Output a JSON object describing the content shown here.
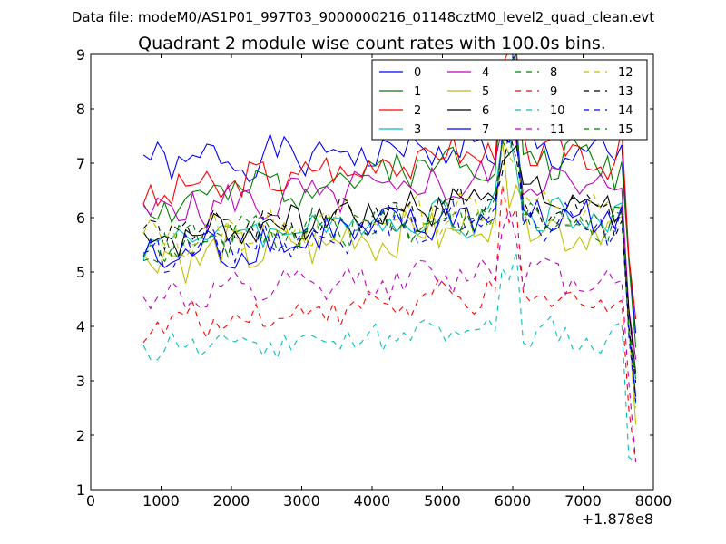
{
  "header": {
    "data_file": "Data file: modeM0/AS1P01_997T03_9000000216_01148cztM0_level2_quad_clean.evt"
  },
  "chart_data": {
    "type": "line",
    "title": "Quadrant 2 module wise count rates with 100.0s bins.",
    "xlabel": "",
    "ylabel": "",
    "xlim": [
      0,
      8000
    ],
    "ylim": [
      1,
      9
    ],
    "x_offset_label": "+1.878e8",
    "xticks": [
      0,
      1000,
      2000,
      3000,
      4000,
      5000,
      6000,
      7000,
      8000
    ],
    "yticks": [
      1,
      2,
      3,
      4,
      5,
      6,
      7,
      8,
      9
    ],
    "x_start": 750,
    "x_end": 7750,
    "x_step": 100,
    "grid": false,
    "legend_position": "top-right",
    "legend_columns": 4,
    "series": [
      {
        "name": "0",
        "color": "#0000ff",
        "dash": "solid",
        "base": 7.0,
        "trend": 0.3,
        "amp": 0.3,
        "seed": 1
      },
      {
        "name": "1",
        "color": "#008000",
        "dash": "solid",
        "base": 6.2,
        "trend": 1.0,
        "amp": 0.35,
        "seed": 2
      },
      {
        "name": "2",
        "color": "#ff0000",
        "dash": "solid",
        "base": 6.4,
        "trend": 0.9,
        "amp": 0.3,
        "seed": 3
      },
      {
        "name": "3",
        "color": "#00bfbf",
        "dash": "solid",
        "base": 5.6,
        "trend": 0.5,
        "amp": 0.3,
        "seed": 4
      },
      {
        "name": "4",
        "color": "#bf00bf",
        "dash": "solid",
        "base": 6.1,
        "trend": 0.6,
        "amp": 0.35,
        "seed": 5
      },
      {
        "name": "5",
        "color": "#bfbf00",
        "dash": "solid",
        "base": 5.2,
        "trend": 0.7,
        "amp": 0.4,
        "seed": 6
      },
      {
        "name": "6",
        "color": "#000000",
        "dash": "solid",
        "base": 5.6,
        "trend": 0.8,
        "amp": 0.3,
        "seed": 7
      },
      {
        "name": "7",
        "color": "#0000ff",
        "dash": "solid",
        "base": 5.2,
        "trend": 0.9,
        "amp": 0.35,
        "seed": 8
      },
      {
        "name": "8",
        "color": "#008000",
        "dash": "dashed",
        "base": 5.4,
        "trend": 0.7,
        "amp": 0.3,
        "seed": 9
      },
      {
        "name": "9",
        "color": "#ff0000",
        "dash": "dashed",
        "base": 4.0,
        "trend": 0.6,
        "amp": 0.25,
        "seed": 10
      },
      {
        "name": "10",
        "color": "#00bfbf",
        "dash": "dashed",
        "base": 3.6,
        "trend": 0.3,
        "amp": 0.25,
        "seed": 11
      },
      {
        "name": "11",
        "color": "#bf00bf",
        "dash": "dashed",
        "base": 4.5,
        "trend": 0.5,
        "amp": 0.25,
        "seed": 12
      },
      {
        "name": "12",
        "color": "#bfbf00",
        "dash": "dashed",
        "base": 5.6,
        "trend": 0.6,
        "amp": 0.3,
        "seed": 13
      },
      {
        "name": "13",
        "color": "#000000",
        "dash": "dashed",
        "base": 5.7,
        "trend": 0.5,
        "amp": 0.3,
        "seed": 14
      },
      {
        "name": "14",
        "color": "#0000ff",
        "dash": "dashed",
        "base": 5.4,
        "trend": 0.6,
        "amp": 0.3,
        "seed": 15
      },
      {
        "name": "15",
        "color": "#008000",
        "dash": "dashed",
        "base": 5.5,
        "trend": 0.6,
        "amp": 0.3,
        "seed": 16
      }
    ]
  }
}
